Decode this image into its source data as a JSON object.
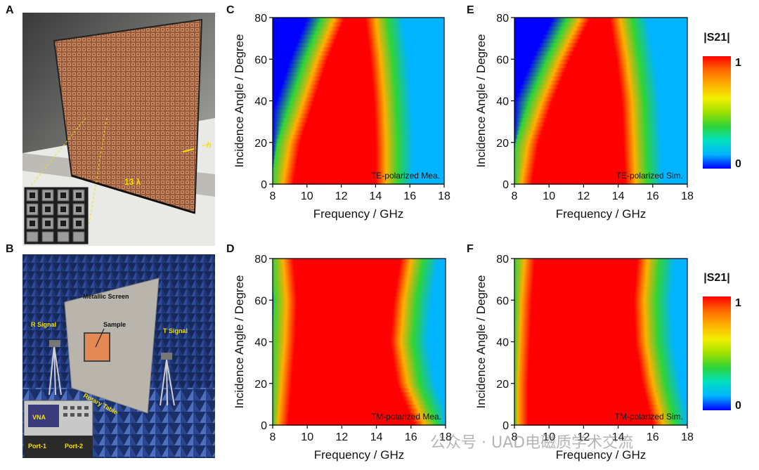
{
  "panel_labels": {
    "a": "A",
    "b": "B",
    "c": "C",
    "d": "D",
    "e": "E",
    "f": "F"
  },
  "photo_a": {
    "scale_label": "13 λ",
    "thickness_label": "h"
  },
  "photo_b": {
    "metallic_screen": "Metallic Screen",
    "sample": "Sample",
    "r_signal": "R Signal",
    "t_signal": "T Signal",
    "rotary_table": "Rotary Table",
    "vna": "VNA",
    "port1": "Port-1",
    "port2": "Port-2"
  },
  "colorbar": {
    "title": "|S21|",
    "max_label": "1",
    "min_label": "0",
    "stops": [
      "#0000ff",
      "#00b4ff",
      "#00e0c0",
      "#2ed43a",
      "#9fe000",
      "#f2f000",
      "#ffb000",
      "#ff6a00",
      "#ff0000"
    ]
  },
  "watermark": "公众号 · UAD电磁质学术交流",
  "chart_data": [
    {
      "id": "C",
      "type": "heatmap",
      "title": "TE-polarized Mea.",
      "xlabel": "Frequency / GHz",
      "ylabel": "Incidence Angle / Degree",
      "xlim": [
        8,
        18
      ],
      "ylim": [
        0,
        80
      ],
      "xticks": [
        "8",
        "10",
        "12",
        "14",
        "16",
        "18"
      ],
      "yticks": [
        "0",
        "20",
        "40",
        "60",
        "80"
      ],
      "value_name": "|S21|",
      "value_range": [
        0,
        1
      ],
      "passband": [
        {
          "angle": 0,
          "low": 8.6,
          "high": 14.6
        },
        {
          "angle": 20,
          "low": 9.0,
          "high": 14.6
        },
        {
          "angle": 40,
          "low": 9.8,
          "high": 14.5
        },
        {
          "angle": 60,
          "low": 10.6,
          "high": 14.3
        },
        {
          "angle": 80,
          "low": 11.6,
          "high": 14.0
        }
      ]
    },
    {
      "id": "D",
      "type": "heatmap",
      "title": "TM-polarized Mea.",
      "xlabel": "Frequency / GHz",
      "ylabel": "Incidence Angle / Degree",
      "xlim": [
        8,
        18
      ],
      "ylim": [
        0,
        80
      ],
      "xticks": [
        "8",
        "10",
        "12",
        "14",
        "16",
        "18"
      ],
      "yticks": [
        "0",
        "20",
        "40",
        "60",
        "80"
      ],
      "value_name": "|S21|",
      "value_range": [
        0,
        1
      ],
      "passband": [
        {
          "angle": 0,
          "low": 8.3,
          "high": 16.8
        },
        {
          "angle": 20,
          "low": 8.5,
          "high": 15.8
        },
        {
          "angle": 40,
          "low": 8.7,
          "high": 15.4
        },
        {
          "angle": 60,
          "low": 8.8,
          "high": 15.6
        },
        {
          "angle": 80,
          "low": 8.6,
          "high": 16.0
        }
      ]
    },
    {
      "id": "E",
      "type": "heatmap",
      "title": "TE-polarized Sim.",
      "xlabel": "Frequency / GHz",
      "ylabel": "Incidence Angle / Degree",
      "xlim": [
        8,
        18
      ],
      "ylim": [
        0,
        80
      ],
      "xticks": [
        "8",
        "10",
        "12",
        "14",
        "16",
        "18"
      ],
      "yticks": [
        "0",
        "20",
        "40",
        "60",
        "80"
      ],
      "value_name": "|S21|",
      "value_range": [
        0,
        1
      ],
      "passband": [
        {
          "angle": 0,
          "low": 8.4,
          "high": 15.0
        },
        {
          "angle": 20,
          "low": 8.8,
          "high": 14.9
        },
        {
          "angle": 40,
          "low": 9.6,
          "high": 14.8
        },
        {
          "angle": 60,
          "low": 10.6,
          "high": 14.5
        },
        {
          "angle": 80,
          "low": 11.8,
          "high": 14.1
        }
      ]
    },
    {
      "id": "F",
      "type": "heatmap",
      "title": "TM-polarized Sim.",
      "xlabel": "Frequency / GHz",
      "ylabel": "Incidence Angle / Degree",
      "xlim": [
        8,
        18
      ],
      "ylim": [
        0,
        80
      ],
      "xticks": [
        "8",
        "10",
        "12",
        "14",
        "16",
        "18"
      ],
      "yticks": [
        "0",
        "20",
        "40",
        "60",
        "80"
      ],
      "value_name": "|S21|",
      "value_range": [
        0,
        1
      ],
      "passband": [
        {
          "angle": 0,
          "low": 8.2,
          "high": 16.6
        },
        {
          "angle": 20,
          "low": 8.2,
          "high": 16.0
        },
        {
          "angle": 40,
          "low": 8.3,
          "high": 15.6
        },
        {
          "angle": 60,
          "low": 8.4,
          "high": 15.5
        },
        {
          "angle": 80,
          "low": 8.6,
          "high": 15.7
        }
      ]
    }
  ]
}
